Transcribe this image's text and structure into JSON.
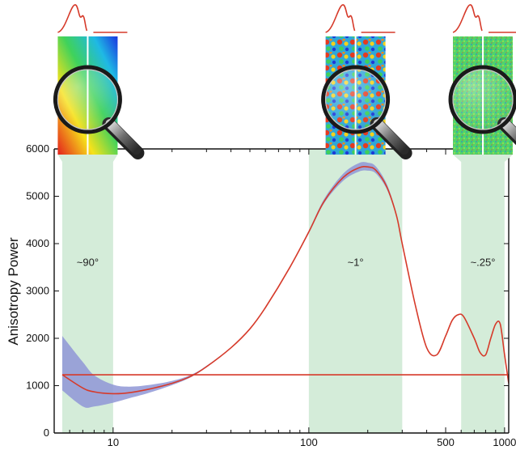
{
  "chart_data": {
    "type": "line",
    "title": "",
    "xlabel": "",
    "ylabel": "Anisotropy Power",
    "x_scale": "log",
    "xlim": [
      5,
      1050
    ],
    "ylim": [
      0,
      6000
    ],
    "x_ticks": [
      10,
      100,
      500,
      1000
    ],
    "x_tick_labels": [
      "10",
      "100",
      "500",
      "1000"
    ],
    "y_ticks": [
      0,
      1000,
      2000,
      3000,
      4000,
      5000,
      6000
    ],
    "y_tick_labels": [
      "0",
      "1000",
      "2000",
      "3000",
      "4000",
      "5000",
      "6000"
    ],
    "grid": false,
    "bands": [
      {
        "x0": 5.5,
        "x1": 10,
        "label": "~90°"
      },
      {
        "x0": 100,
        "x1": 300,
        "label": "~1°"
      },
      {
        "x0": 600,
        "x1": 1000,
        "label": "~.25°"
      }
    ],
    "series": [
      {
        "x": [
          5.5,
          7,
          8,
          10,
          12,
          15,
          20,
          25,
          30,
          40,
          50,
          60,
          80,
          100,
          120,
          150,
          180,
          200,
          220,
          250,
          280,
          300,
          350,
          400,
          450,
          500,
          540,
          580,
          620,
          700,
          750,
          800,
          850,
          900,
          950,
          1000,
          1050
        ],
        "y": [
          1230,
          950,
          870,
          830,
          850,
          920,
          1050,
          1200,
          1400,
          1800,
          2200,
          2650,
          3500,
          4250,
          4900,
          5400,
          5600,
          5620,
          5550,
          5200,
          4600,
          4000,
          2700,
          1800,
          1650,
          2050,
          2380,
          2500,
          2450,
          2000,
          1700,
          1650,
          2000,
          2300,
          2300,
          1650,
          1050
        ],
        "band_lower": [
          900,
          560,
          560,
          640,
          730,
          840,
          1010,
          1180,
          1390,
          1790,
          2200,
          2650,
          3490,
          4220,
          4860,
          5330,
          5520,
          5540,
          5480,
          5150,
          4570,
          3980,
          2690,
          1790,
          1640,
          2040,
          2370,
          2490,
          2440,
          1990,
          1690,
          1640,
          1990,
          2290,
          2290,
          1640,
          1040
        ],
        "band_upper": [
          2050,
          1500,
          1220,
          1020,
          980,
          1010,
          1100,
          1230,
          1420,
          1810,
          2210,
          2660,
          3510,
          4280,
          4950,
          5480,
          5700,
          5710,
          5630,
          5260,
          4640,
          4020,
          2710,
          1810,
          1660,
          2060,
          2390,
          2510,
          2460,
          2010,
          1710,
          1660,
          2010,
          2310,
          2310,
          1660,
          1060
        ]
      },
      {
        "x": [
          5.5,
          1050
        ],
        "y": [
          1230,
          1230
        ]
      }
    ],
    "colors": {
      "line": "#d63a2a",
      "uncertainty": "#8f96d6",
      "band": "#d4ecd9",
      "axis": "#111111"
    },
    "insets": [
      {
        "band": 0,
        "map": "smooth-gradient-map-icon",
        "magnifier": "magnifying-glass-icon"
      },
      {
        "band": 1,
        "map": "medium-scale-noise-map-icon",
        "magnifier": "magnifying-glass-icon"
      },
      {
        "band": 2,
        "map": "fine-scale-noise-map-icon",
        "magnifier": "magnifying-glass-icon"
      }
    ]
  }
}
